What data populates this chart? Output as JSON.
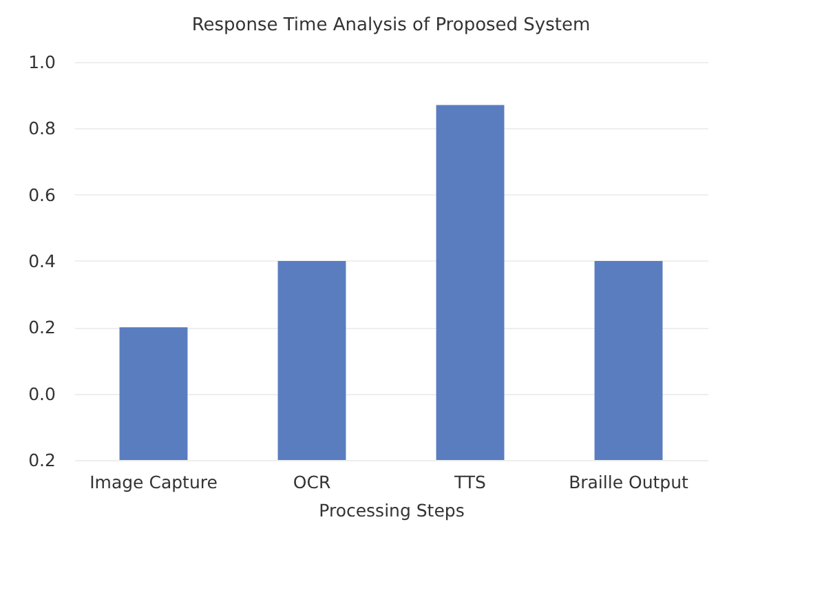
{
  "chart_data": {
    "type": "bar",
    "title": "Response Time Analysis of Proposed System",
    "xlabel": "Processing Steps",
    "categories": [
      "Image Capture",
      "OCR",
      "TTS",
      "Braille Output"
    ],
    "values": [
      0.4,
      0.6,
      1.07,
      0.6
    ],
    "base": [
      -0.2,
      -0.2,
      -0.2,
      -0.2
    ],
    "color": "#5a7dc0",
    "ylim": [
      -0.2,
      1.0
    ],
    "yticks": [
      {
        "value": -0.2,
        "label": "0.2"
      },
      {
        "value": 0,
        "label": "0.0"
      },
      0.2,
      0.4,
      0.6,
      0.8,
      {
        "value": 1,
        "label": "1.0"
      }
    ],
    "grid": "y"
  }
}
